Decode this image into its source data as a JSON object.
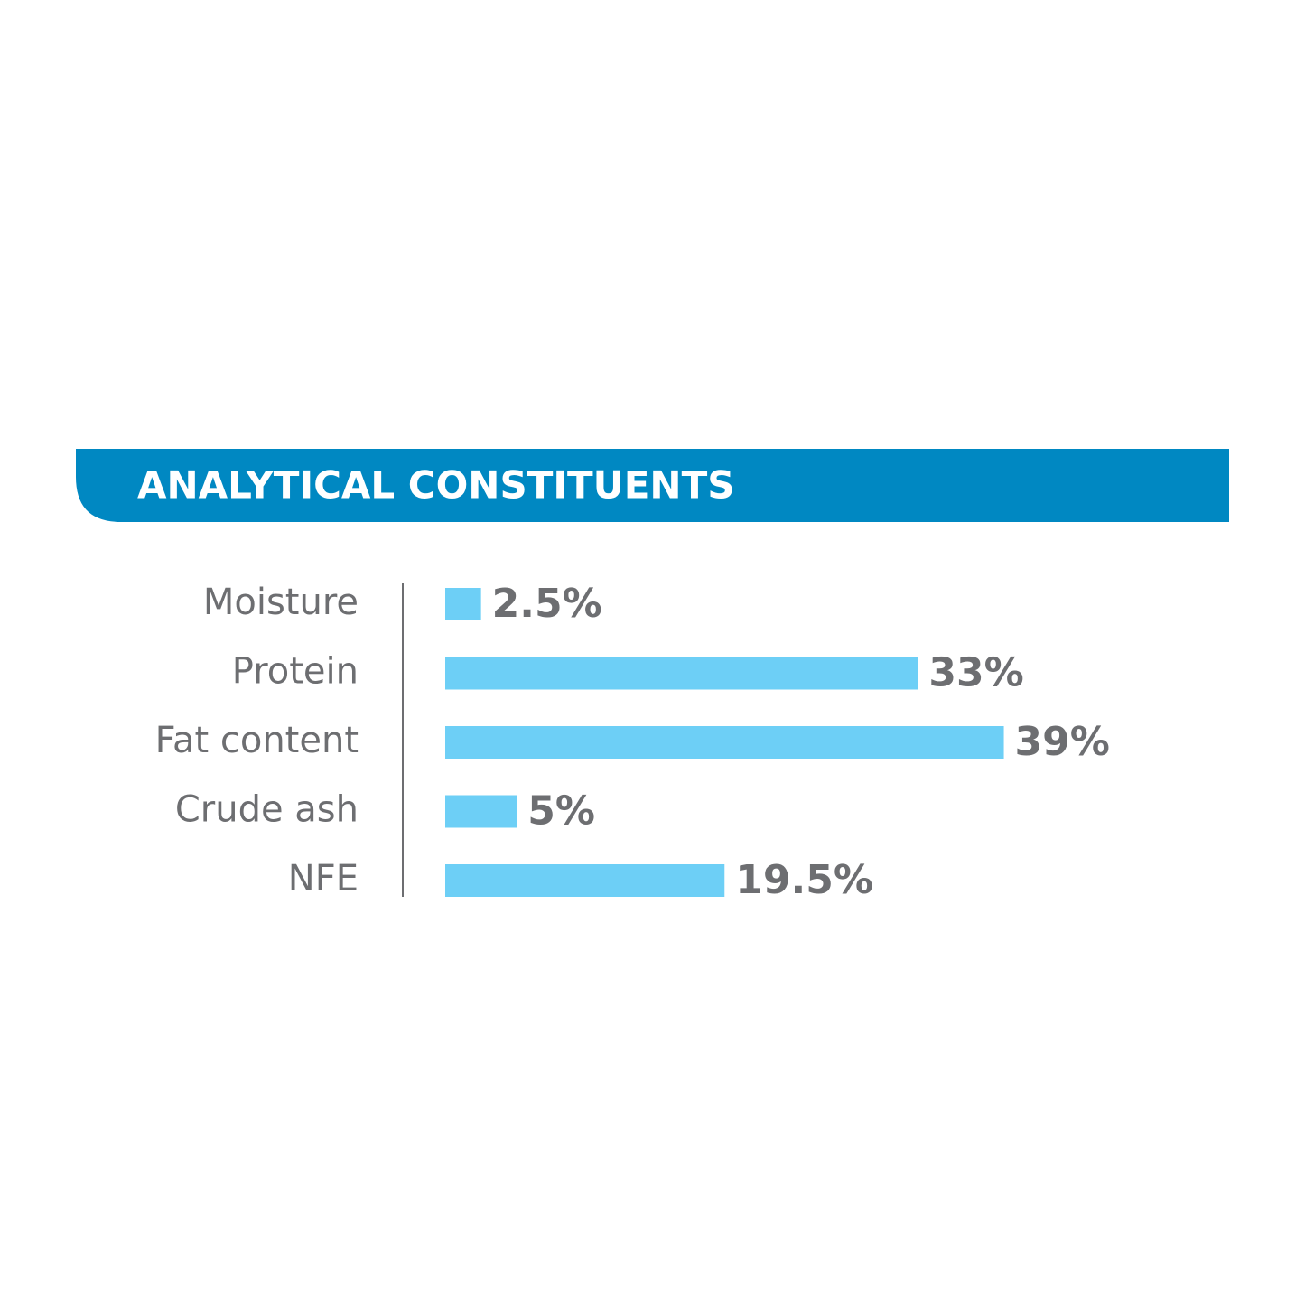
{
  "chart_data": {
    "type": "bar",
    "orientation": "horizontal",
    "title": "ANALYTICAL CONSTITUENTS",
    "categories": [
      "Moisture",
      "Protein",
      "Fat content",
      "Crude ash",
      "NFE"
    ],
    "values": [
      2.5,
      33,
      39,
      5,
      19.5
    ],
    "value_labels": [
      "2.5%",
      "33%",
      "39%",
      "5%",
      "19.5%"
    ],
    "color": "#6dcff6"
  }
}
